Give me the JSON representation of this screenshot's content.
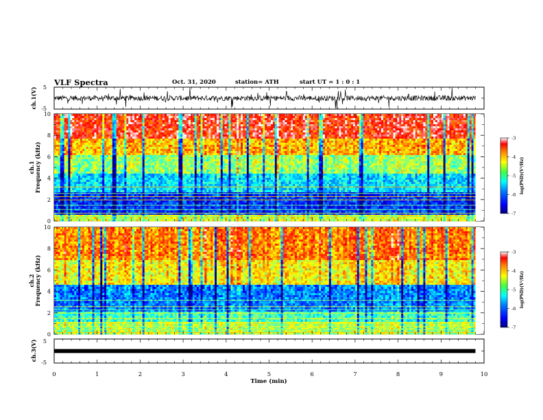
{
  "header": {
    "title": "VLF Spectra",
    "date": "Oct. 31, 2020",
    "station": "station= ATH",
    "start": "start  UT =   1 : 0  : 1"
  },
  "colors": {
    "colormap": [
      "#00007f",
      "#0000ff",
      "#0080ff",
      "#00ffff",
      "#80ff80",
      "#ffff00",
      "#ff8000",
      "#ff0000",
      "#ffffff"
    ],
    "trace": "#000000"
  },
  "chart_data": [
    {
      "type": "line",
      "panel": "ch1-waveform",
      "ylabel": "ch.1(V)",
      "ylim": [
        -5,
        5
      ],
      "yticks": [
        "5",
        "-5"
      ],
      "xlim": [
        0,
        10
      ],
      "description_values": {
        "baseline": 0.0,
        "typical_amplitude": 1.2,
        "max_spike": 4.5
      }
    },
    {
      "type": "heatmap",
      "panel": "ch1-spectrogram",
      "ylabel": "ch.1\nFrequency (kHz)",
      "ylim": [
        0,
        10
      ],
      "yticks": [
        "0",
        "2",
        "4",
        "6",
        "8",
        "10"
      ],
      "xlim": [
        0,
        9.8
      ],
      "bands_kHz": [
        {
          "from": 0.0,
          "to": 0.6,
          "level": -4.6
        },
        {
          "from": 0.6,
          "to": 2.6,
          "level": -6.3
        },
        {
          "from": 2.6,
          "to": 4.5,
          "level": -5.6
        },
        {
          "from": 4.5,
          "to": 6.2,
          "level": -4.9
        },
        {
          "from": 6.2,
          "to": 7.6,
          "level": -4.2
        },
        {
          "from": 7.6,
          "to": 10.0,
          "level": -3.5
        }
      ],
      "colorbar": {
        "label": "log(PSD)(V²/Hz)",
        "ticks": [
          "-3",
          "-4",
          "-5",
          "-6",
          "-7"
        ],
        "range": [
          -7,
          -3
        ]
      }
    },
    {
      "type": "heatmap",
      "panel": "ch2-spectrogram",
      "ylabel": "ch.2\nFrequency (kHz)",
      "ylim": [
        0,
        10
      ],
      "yticks": [
        "0",
        "2",
        "4",
        "6",
        "8",
        "10"
      ],
      "xlim": [
        0,
        9.8
      ],
      "bands_kHz": [
        {
          "from": 0.0,
          "to": 1.2,
          "level": -4.8
        },
        {
          "from": 1.2,
          "to": 2.2,
          "level": -5.3
        },
        {
          "from": 2.2,
          "to": 4.6,
          "level": -6.0
        },
        {
          "from": 4.6,
          "to": 7.0,
          "level": -4.5
        },
        {
          "from": 7.0,
          "to": 10.0,
          "level": -4.0
        }
      ],
      "colorbar": {
        "label": "log(PSD)(V²/Hz)",
        "ticks": [
          "-3",
          "-4",
          "-5",
          "-6",
          "-7"
        ],
        "range": [
          -7,
          -3
        ]
      }
    },
    {
      "type": "line",
      "panel": "ch3-waveform",
      "ylabel": "ch.3(V)",
      "ylim": [
        -5,
        5
      ],
      "yticks": [
        "5",
        "-5"
      ],
      "xlim": [
        0,
        10
      ],
      "description_values": {
        "baseline": 0.0,
        "typical_amplitude": 0.3,
        "max_spike": 0.4
      }
    }
  ],
  "xaxis": {
    "label": "Time (min)",
    "ticks": [
      "0",
      "1",
      "2",
      "3",
      "4",
      "5",
      "6",
      "7",
      "8",
      "9",
      "10"
    ],
    "range": [
      0,
      10
    ],
    "data_end": 9.8
  }
}
